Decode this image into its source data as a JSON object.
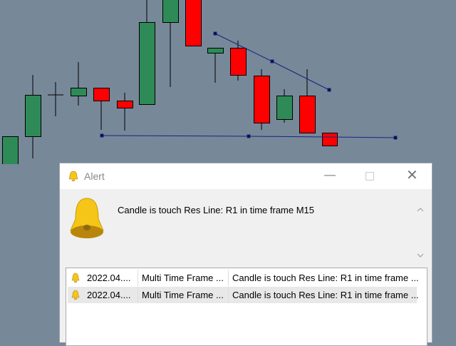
{
  "window": {
    "title": "Alert",
    "message": "Candle is touch Res Line: R1 in time frame M15"
  },
  "list": {
    "rows": [
      [
        "2022.04....",
        "Multi Time Frame ...",
        "Candle is touch Res Line: R1 in time frame ..."
      ],
      [
        "2022.04....",
        "Multi Time Frame ...",
        "Candle is touch Res Line: R1 in time frame ..."
      ]
    ]
  }
}
